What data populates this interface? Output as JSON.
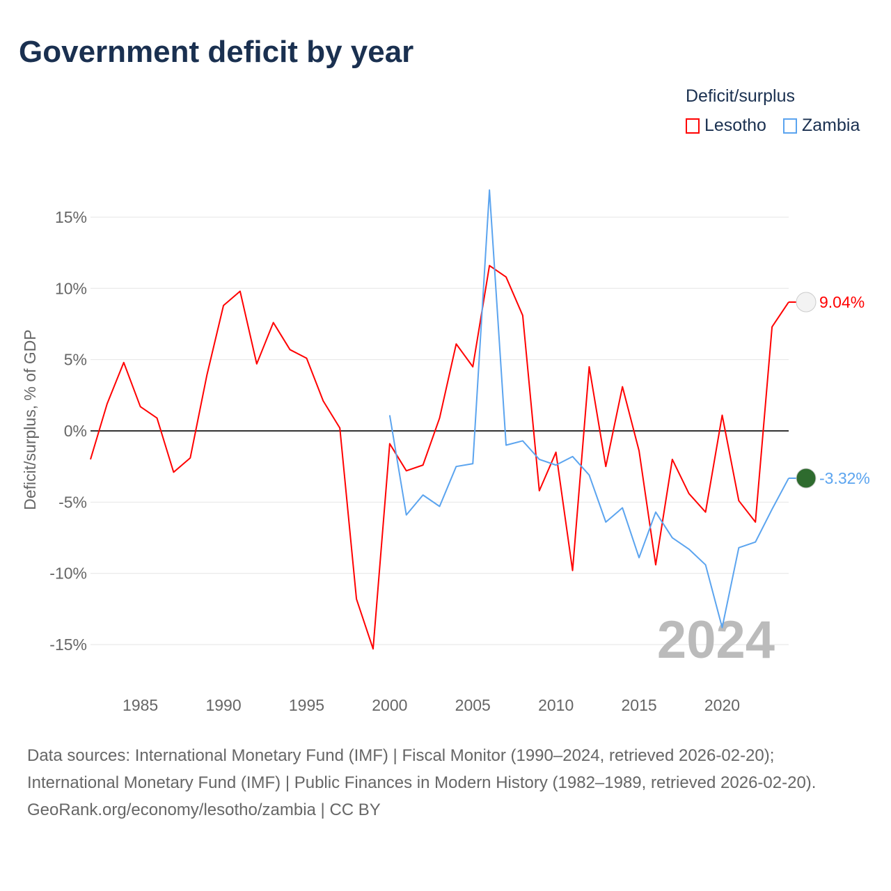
{
  "title": "Government deficit by year",
  "legend": {
    "title": "Deficit/surplus"
  },
  "colors": {
    "Lesotho": "#ff0000",
    "Zambia": "#5ba4ef"
  },
  "chart_data": {
    "type": "line",
    "title": "Government deficit by year",
    "ylabel": "Deficit/surplus, % of GDP",
    "xlabel": "",
    "xlim": [
      1982,
      2024
    ],
    "ylim": [
      -16,
      17
    ],
    "xticks": [
      1985,
      1990,
      1995,
      2000,
      2005,
      2010,
      2015,
      2020
    ],
    "yticks": [
      -15,
      -10,
      -5,
      0,
      5,
      10,
      15
    ],
    "ytick_labels": [
      "-15%",
      "-10%",
      "-5%",
      "0%",
      "5%",
      "10%",
      "15%"
    ],
    "year_label": "2024",
    "series": [
      {
        "name": "Lesotho",
        "end_label": "9.04%",
        "x": [
          1982,
          1983,
          1984,
          1985,
          1986,
          1987,
          1988,
          1989,
          1990,
          1991,
          1992,
          1993,
          1994,
          1995,
          1996,
          1997,
          1998,
          1999,
          2000,
          2001,
          2002,
          2003,
          2004,
          2005,
          2006,
          2007,
          2008,
          2009,
          2010,
          2011,
          2012,
          2013,
          2014,
          2015,
          2016,
          2017,
          2018,
          2019,
          2020,
          2021,
          2022,
          2023,
          2024
        ],
        "values": [
          -2.0,
          1.9,
          4.8,
          1.7,
          0.9,
          -2.9,
          -1.9,
          3.9,
          8.8,
          9.8,
          4.7,
          7.6,
          5.7,
          5.1,
          2.1,
          0.2,
          -11.8,
          -15.3,
          -0.9,
          -2.8,
          -2.4,
          0.9,
          6.1,
          4.5,
          11.6,
          10.8,
          8.1,
          -4.2,
          -1.5,
          -9.8,
          4.5,
          -2.5,
          3.1,
          -1.4,
          -9.4,
          -2.0,
          -4.4,
          -5.7,
          1.1,
          -4.9,
          -6.4,
          7.3,
          9.04
        ]
      },
      {
        "name": "Zambia",
        "end_label": "-3.32%",
        "x": [
          2000,
          2001,
          2002,
          2003,
          2004,
          2005,
          2006,
          2007,
          2008,
          2009,
          2010,
          2011,
          2012,
          2013,
          2014,
          2015,
          2016,
          2017,
          2018,
          2019,
          2020,
          2021,
          2022,
          2023,
          2024
        ],
        "values": [
          1.1,
          -5.9,
          -4.5,
          -5.3,
          -2.5,
          -2.3,
          16.9,
          -1.0,
          -0.7,
          -2.0,
          -2.4,
          -1.8,
          -3.1,
          -6.4,
          -5.4,
          -8.9,
          -5.7,
          -7.5,
          -8.3,
          -9.4,
          -13.8,
          -8.2,
          -7.8,
          -5.5,
          -3.32
        ]
      }
    ]
  },
  "footer": {
    "sources": "Data sources: International Monetary Fund (IMF) | Fiscal Monitor (1990–2024, retrieved 2026-02-20); International Monetary Fund (IMF) | Public Finances in Modern History (1982–1989, retrieved 2026-02-20).",
    "credit": "GeoRank.org/economy/lesotho/zambia | CC BY"
  }
}
